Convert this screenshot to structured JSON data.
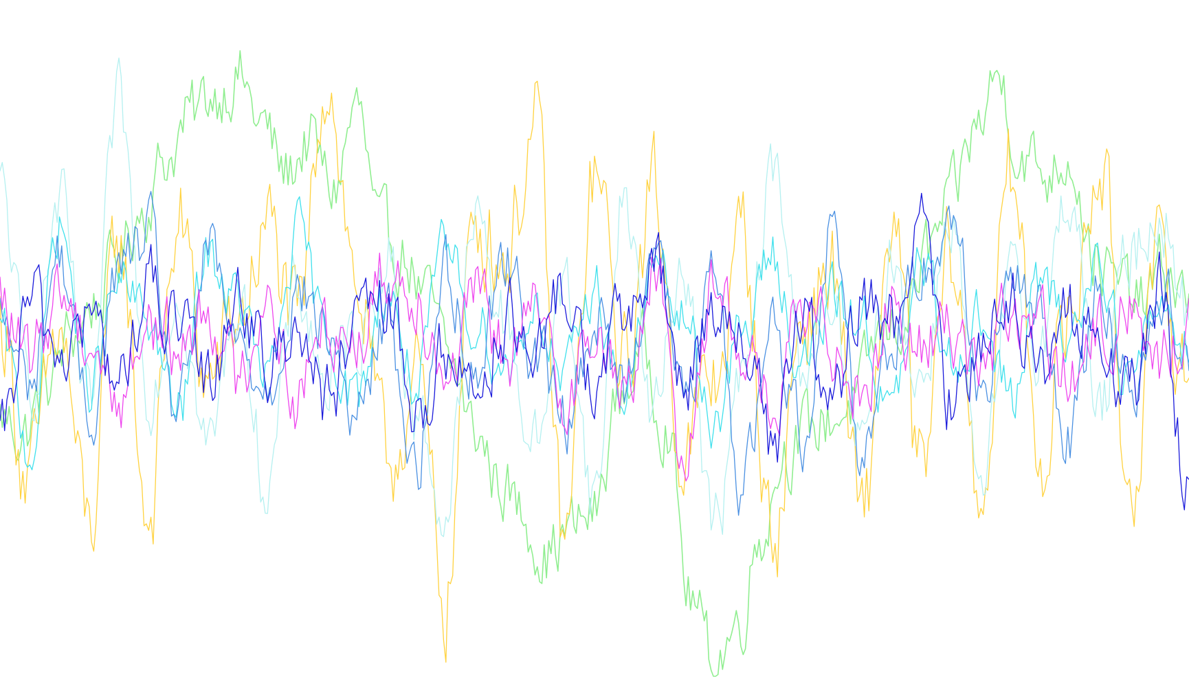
{
  "chart_data": {
    "type": "line",
    "title": "",
    "xlabel": "",
    "ylabel": "",
    "grid": false,
    "legend": "none",
    "axes_visible": false,
    "xlim": [
      0,
      1
    ],
    "ylim": [
      -1,
      1
    ],
    "series": [
      {
        "color": "#90ee90",
        "x": [
          0,
          0.02,
          0.04,
          0.06,
          0.08,
          0.1,
          0.12,
          0.14,
          0.16,
          0.18,
          0.2,
          0.22,
          0.24,
          0.26,
          0.28,
          0.3,
          0.32,
          0.34,
          0.36,
          0.38,
          0.4,
          0.42,
          0.44,
          0.46,
          0.48,
          0.5,
          0.52,
          0.54,
          0.56,
          0.58,
          0.6,
          0.62,
          0.64,
          0.66,
          0.68,
          0.7,
          0.72,
          0.74,
          0.76,
          0.78,
          0.8,
          0.82,
          0.84,
          0.86,
          0.88,
          0.9,
          0.92,
          0.94,
          0.96,
          0.98,
          1
        ],
        "y": [
          -0.2,
          -0.25,
          -0.1,
          0.05,
          0.15,
          0.3,
          0.45,
          0.6,
          0.72,
          0.8,
          0.85,
          0.7,
          0.55,
          0.65,
          0.5,
          0.75,
          0.35,
          0.3,
          0.15,
          -0.05,
          -0.25,
          -0.4,
          -0.5,
          -0.62,
          -0.55,
          -0.5,
          -0.15,
          0,
          -0.2,
          -0.75,
          -0.95,
          -0.85,
          -0.55,
          -0.3,
          -0.25,
          -0.2,
          -0.15,
          0.05,
          0.1,
          0.3,
          0.45,
          0.68,
          0.85,
          0.6,
          0.55,
          0.62,
          0.3,
          0.2,
          0.15,
          0.25,
          0.15
        ],
        "jitter": 0.09
      },
      {
        "color": "#ffd23f",
        "x": [
          0,
          0.025,
          0.05,
          0.075,
          0.1,
          0.125,
          0.15,
          0.175,
          0.2,
          0.225,
          0.25,
          0.275,
          0.3,
          0.325,
          0.35,
          0.375,
          0.4,
          0.425,
          0.45,
          0.475,
          0.5,
          0.525,
          0.55,
          0.575,
          0.6,
          0.625,
          0.65,
          0.675,
          0.7,
          0.725,
          0.75,
          0.775,
          0.8,
          0.825,
          0.85,
          0.875,
          0.9,
          0.925,
          0.95,
          0.975,
          1
        ],
        "y": [
          0.1,
          -0.4,
          0.05,
          -0.55,
          0.35,
          -0.5,
          0.4,
          -0.1,
          0.1,
          0.38,
          0.05,
          0.88,
          0.2,
          -0.35,
          -0.1,
          -0.75,
          0.42,
          0.3,
          0.68,
          -0.6,
          0.55,
          -0.05,
          0.5,
          -0.3,
          -0.1,
          0.35,
          -0.6,
          0.1,
          0.25,
          -0.55,
          0.4,
          -0.4,
          0.3,
          -0.45,
          0.55,
          -0.3,
          0.1,
          0.6,
          -0.4,
          0.25,
          -0.1
        ],
        "jitter": 0.14
      },
      {
        "color": "#b4f0f0",
        "x": [
          0,
          0.025,
          0.05,
          0.075,
          0.1,
          0.125,
          0.15,
          0.175,
          0.2,
          0.225,
          0.25,
          0.275,
          0.3,
          0.325,
          0.35,
          0.375,
          0.4,
          0.425,
          0.45,
          0.475,
          0.5,
          0.525,
          0.55,
          0.575,
          0.6,
          0.625,
          0.65,
          0.675,
          0.7,
          0.725,
          0.75,
          0.775,
          0.8,
          0.825,
          0.85,
          0.875,
          0.9,
          0.925,
          0.95,
          0.975,
          1
        ],
        "y": [
          0.5,
          -0.1,
          0.45,
          -0.2,
          0.75,
          -0.1,
          0.2,
          -0.3,
          0.15,
          -0.4,
          0.2,
          -0.1,
          0.05,
          0.3,
          -0.2,
          -0.5,
          0.4,
          0.1,
          -0.3,
          0.2,
          -0.45,
          0.5,
          -0.2,
          0.3,
          -0.55,
          -0.1,
          0.55,
          0,
          0.1,
          -0.3,
          0.3,
          -0.1,
          0.45,
          -0.5,
          0.2,
          0.05,
          0.5,
          -0.2,
          0.3,
          0.45,
          0.1
        ],
        "jitter": 0.1
      },
      {
        "color": "#3ee0ec",
        "x": [
          0,
          0.025,
          0.05,
          0.075,
          0.1,
          0.125,
          0.15,
          0.175,
          0.2,
          0.225,
          0.25,
          0.275,
          0.3,
          0.325,
          0.35,
          0.375,
          0.4,
          0.425,
          0.45,
          0.475,
          0.5,
          0.525,
          0.55,
          0.575,
          0.6,
          0.625,
          0.65,
          0.675,
          0.7,
          0.725,
          0.75,
          0.775,
          0.8,
          0.825,
          0.85,
          0.875,
          0.9,
          0.925,
          0.95,
          0.975,
          1
        ],
        "y": [
          0.05,
          -0.3,
          0.4,
          -0.1,
          0.2,
          0.1,
          -0.2,
          0.3,
          0.15,
          -0.1,
          0.35,
          0.05,
          -0.15,
          0.2,
          -0.1,
          0.3,
          0.1,
          -0.05,
          0.15,
          -0.1,
          0.2,
          -0.15,
          0.25,
          0.1,
          -0.2,
          0.05,
          0.3,
          -0.05,
          0.15,
          0.1,
          -0.2,
          0.25,
          0,
          0.1,
          -0.15,
          0.2,
          0.05,
          0.3,
          -0.1,
          0.15,
          0.05
        ],
        "jitter": 0.08
      },
      {
        "color": "#4a90e2",
        "x": [
          0,
          0.025,
          0.05,
          0.075,
          0.1,
          0.125,
          0.15,
          0.175,
          0.2,
          0.225,
          0.25,
          0.275,
          0.3,
          0.325,
          0.35,
          0.375,
          0.4,
          0.425,
          0.45,
          0.475,
          0.5,
          0.525,
          0.55,
          0.575,
          0.6,
          0.625,
          0.65,
          0.675,
          0.7,
          0.725,
          0.75,
          0.775,
          0.8,
          0.825,
          0.85,
          0.875,
          0.9,
          0.925,
          0.95,
          0.975,
          1
        ],
        "y": [
          0.1,
          -0.1,
          0.3,
          -0.2,
          0.25,
          0.35,
          -0.2,
          0.3,
          0,
          -0.1,
          0.2,
          0.05,
          -0.2,
          0.1,
          -0.35,
          0.25,
          -0.05,
          0.3,
          0,
          -0.2,
          0.1,
          -0.1,
          0.35,
          -0.15,
          0.2,
          -0.4,
          0.1,
          -0.25,
          0.4,
          -0.3,
          0.05,
          0.25,
          0.45,
          -0.1,
          0.2,
          0.1,
          -0.25,
          0.2,
          -0.1,
          0.15,
          0.05
        ],
        "jitter": 0.09
      },
      {
        "color": "#ee44ee",
        "x": [
          0,
          0.025,
          0.05,
          0.075,
          0.1,
          0.125,
          0.15,
          0.175,
          0.2,
          0.225,
          0.25,
          0.275,
          0.3,
          0.325,
          0.35,
          0.375,
          0.4,
          0.425,
          0.45,
          0.475,
          0.5,
          0.525,
          0.55,
          0.575,
          0.6,
          0.625,
          0.65,
          0.675,
          0.7,
          0.725,
          0.75,
          0.775,
          0.8,
          0.825,
          0.85,
          0.875,
          0.9,
          0.925,
          0.95,
          0.975,
          1
        ],
        "y": [
          0.15,
          -0.05,
          0.2,
          0.05,
          -0.15,
          0.1,
          0,
          0.15,
          -0.1,
          0.2,
          -0.15,
          0.1,
          0.05,
          0.25,
          0.2,
          -0.05,
          0.15,
          0,
          0.1,
          -0.1,
          0.05,
          -0.15,
          0.25,
          -0.3,
          0.2,
          0.05,
          -0.2,
          0.1,
          0.05,
          -0.1,
          0.15,
          0,
          0.1,
          -0.05,
          0.1,
          0.05,
          -0.1,
          0.05,
          0.15,
          -0.05,
          0.1
        ],
        "jitter": 0.1
      },
      {
        "color": "#1a1adb",
        "x": [
          0,
          0.025,
          0.05,
          0.075,
          0.1,
          0.125,
          0.15,
          0.175,
          0.2,
          0.225,
          0.25,
          0.275,
          0.3,
          0.325,
          0.35,
          0.375,
          0.4,
          0.425,
          0.45,
          0.475,
          0.5,
          0.525,
          0.55,
          0.575,
          0.6,
          0.625,
          0.65,
          0.675,
          0.7,
          0.725,
          0.75,
          0.775,
          0.8,
          0.825,
          0.85,
          0.875,
          0.9,
          0.925,
          0.95,
          0.975,
          1
        ],
        "y": [
          -0.3,
          0.15,
          0,
          0.1,
          -0.1,
          0.2,
          0.05,
          -0.1,
          0.2,
          -0.05,
          0.1,
          -0.15,
          0.05,
          0.15,
          -0.2,
          0,
          -0.1,
          0.1,
          -0.05,
          0.2,
          -0.1,
          0.1,
          0.25,
          -0.1,
          0.15,
          0.05,
          -0.3,
          0.1,
          -0.2,
          0.15,
          0.1,
          0.35,
          -0.15,
          0.05,
          0.2,
          -0.1,
          0.1,
          0.05,
          -0.15,
          0.2,
          -0.45
        ],
        "jitter": 0.1
      }
    ]
  }
}
